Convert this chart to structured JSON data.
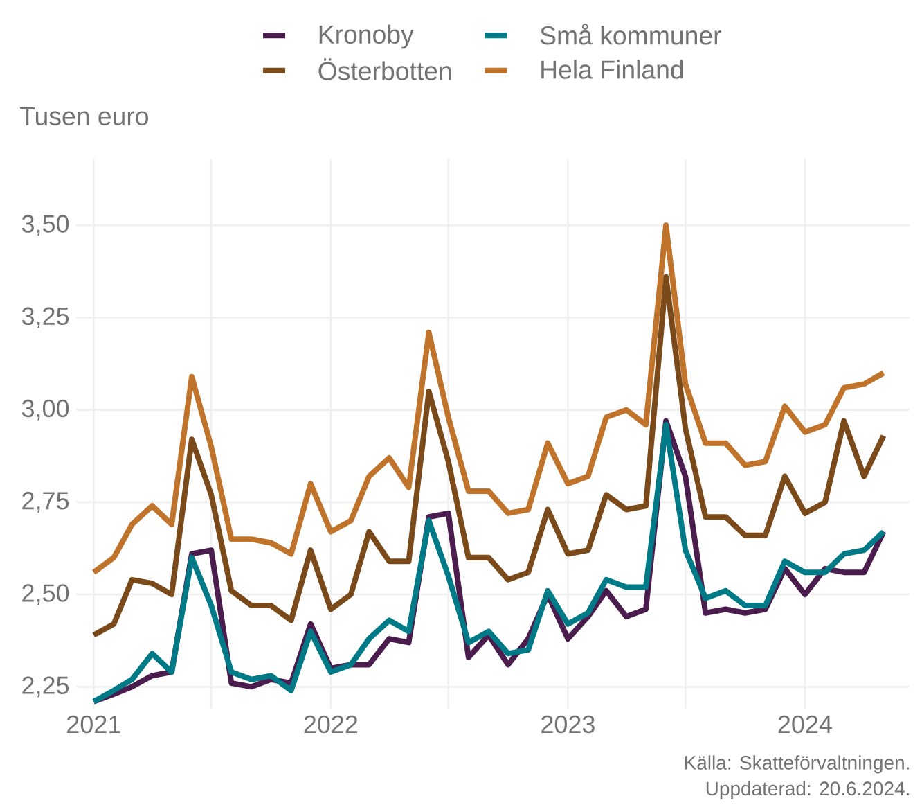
{
  "chart_data": {
    "type": "line",
    "ylabel": "Tusen euro",
    "x": [
      "2021-01",
      "2021-02",
      "2021-03",
      "2021-04",
      "2021-05",
      "2021-06",
      "2021-07",
      "2021-08",
      "2021-09",
      "2021-10",
      "2021-11",
      "2021-12",
      "2022-01",
      "2022-02",
      "2022-03",
      "2022-04",
      "2022-05",
      "2022-06",
      "2022-07",
      "2022-08",
      "2022-09",
      "2022-10",
      "2022-11",
      "2022-12",
      "2023-01",
      "2023-02",
      "2023-03",
      "2023-04",
      "2023-05",
      "2023-06",
      "2023-07",
      "2023-08",
      "2023-09",
      "2023-10",
      "2023-11",
      "2023-12",
      "2024-01",
      "2024-02",
      "2024-03",
      "2024-04",
      "2024-05"
    ],
    "series": [
      {
        "name": "Kronoby",
        "color": "#4b1d4f",
        "values": [
          2.21,
          2.23,
          2.25,
          2.28,
          2.29,
          2.61,
          2.62,
          2.26,
          2.25,
          2.27,
          2.26,
          2.42,
          2.3,
          2.31,
          2.31,
          2.38,
          2.37,
          2.71,
          2.72,
          2.33,
          2.39,
          2.31,
          2.38,
          2.5,
          2.38,
          2.44,
          2.51,
          2.44,
          2.46,
          2.97,
          2.82,
          2.45,
          2.46,
          2.45,
          2.46,
          2.57,
          2.5,
          2.57,
          2.56,
          2.56,
          2.67
        ]
      },
      {
        "name": "Små kommuner",
        "color": "#007a87",
        "values": [
          2.21,
          2.24,
          2.27,
          2.34,
          2.29,
          2.6,
          2.47,
          2.29,
          2.27,
          2.28,
          2.24,
          2.4,
          2.29,
          2.31,
          2.38,
          2.43,
          2.4,
          2.7,
          2.55,
          2.37,
          2.4,
          2.34,
          2.35,
          2.51,
          2.42,
          2.45,
          2.54,
          2.52,
          2.52,
          2.96,
          2.62,
          2.49,
          2.51,
          2.47,
          2.47,
          2.59,
          2.56,
          2.56,
          2.61,
          2.62,
          2.67
        ]
      },
      {
        "name": "Österbotten",
        "color": "#7b4a1b",
        "values": [
          2.39,
          2.42,
          2.54,
          2.53,
          2.5,
          2.92,
          2.77,
          2.51,
          2.47,
          2.47,
          2.43,
          2.62,
          2.46,
          2.5,
          2.67,
          2.59,
          2.59,
          3.05,
          2.86,
          2.6,
          2.6,
          2.54,
          2.56,
          2.73,
          2.61,
          2.62,
          2.77,
          2.73,
          2.74,
          3.36,
          2.95,
          2.71,
          2.71,
          2.66,
          2.66,
          2.82,
          2.72,
          2.75,
          2.97,
          2.82,
          2.93
        ]
      },
      {
        "name": "Hela Finland",
        "color": "#c0732a",
        "values": [
          2.56,
          2.6,
          2.69,
          2.74,
          2.69,
          3.09,
          2.9,
          2.65,
          2.65,
          2.64,
          2.61,
          2.8,
          2.67,
          2.7,
          2.82,
          2.87,
          2.79,
          3.21,
          2.98,
          2.78,
          2.78,
          2.72,
          2.73,
          2.91,
          2.8,
          2.82,
          2.98,
          3.0,
          2.96,
          3.5,
          3.07,
          2.91,
          2.91,
          2.85,
          2.86,
          3.01,
          2.94,
          2.96,
          3.06,
          3.07,
          3.1
        ]
      }
    ],
    "xlim": [
      "2020-12-05",
      "2024-06-10"
    ],
    "xticks": [
      {
        "value": "2021",
        "label": "2021"
      },
      {
        "value": "2021-07",
        "label": null
      },
      {
        "value": "2022",
        "label": "2022"
      },
      {
        "value": "2022-07",
        "label": null
      },
      {
        "value": "2023",
        "label": "2023"
      },
      {
        "value": "2023-07",
        "label": null
      },
      {
        "value": "2024",
        "label": "2024"
      }
    ],
    "ylim": [
      2.19,
      3.68
    ],
    "yticks": [
      {
        "value": 2.25,
        "label": "2,25"
      },
      {
        "value": 2.5,
        "label": "2,50"
      },
      {
        "value": 2.75,
        "label": "2,75"
      },
      {
        "value": 3.0,
        "label": "3,00"
      },
      {
        "value": 3.25,
        "label": "3,25"
      },
      {
        "value": 3.5,
        "label": "3,50"
      }
    ],
    "grid": true,
    "legend": "top",
    "line_style": "solid",
    "marker": "none",
    "annotations": [
      "Källa: Skatteförvaltningen.",
      "Uppdaterad: 20.6.2024."
    ]
  }
}
